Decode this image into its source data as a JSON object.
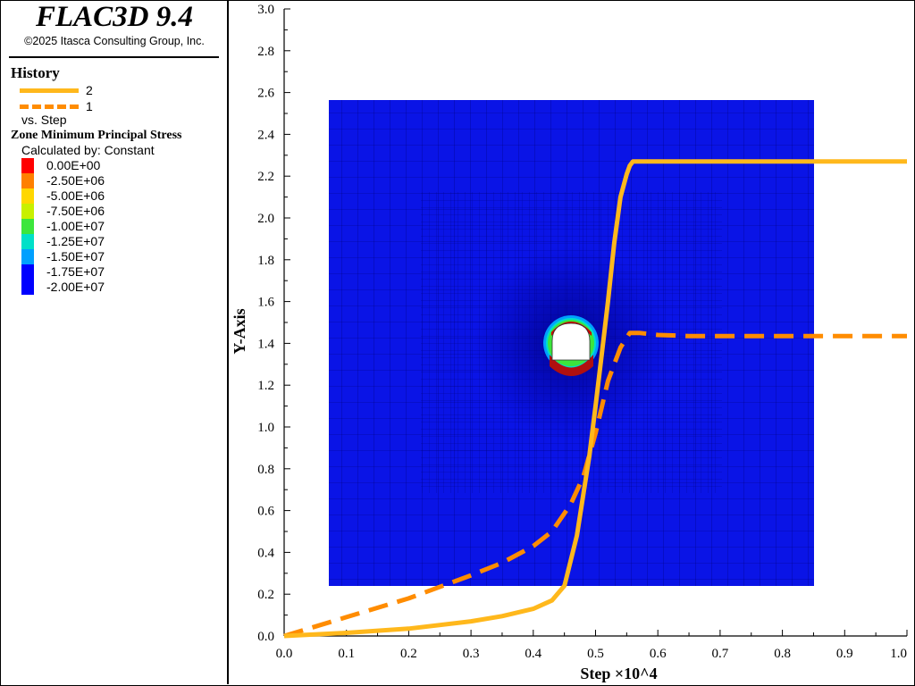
{
  "app": {
    "title": "FLAC3D 9.4",
    "copyright": "©2025 Itasca Consulting Group, Inc."
  },
  "legend": {
    "history_heading": "History",
    "histories": [
      {
        "label": "2",
        "color": "#FFB81C",
        "style": "solid"
      },
      {
        "label": "1",
        "color": "#FF8C00",
        "style": "dashed"
      }
    ],
    "vs_label": "vs. Step",
    "contour_title": "Zone Minimum Principal Stress",
    "calculated_by": "Calculated by: Constant",
    "contour_bands": [
      {
        "label": "0.00E+00",
        "color": "#FF0000"
      },
      {
        "label": "-2.50E+06",
        "color": "#FF8000"
      },
      {
        "label": "-5.00E+06",
        "color": "#FFD700"
      },
      {
        "label": "-7.50E+06",
        "color": "#C8F000"
      },
      {
        "label": "-1.00E+07",
        "color": "#3CE63C"
      },
      {
        "label": "-1.25E+07",
        "color": "#00E0C8"
      },
      {
        "label": "-1.50E+07",
        "color": "#00A0FF"
      },
      {
        "label": "-1.75E+07",
        "color": "#0000FF"
      },
      {
        "label": "-2.00E+07",
        "color": "#0000FF"
      }
    ]
  },
  "chart_data": {
    "type": "line",
    "xlabel": "Step ×10^4",
    "ylabel": "Y-Axis",
    "xlim": [
      0.0,
      1.0
    ],
    "ylim": [
      0.0,
      3.0
    ],
    "x_ticks": [
      "0.0",
      "0.1",
      "0.2",
      "0.3",
      "0.4",
      "0.5",
      "0.6",
      "0.7",
      "0.8",
      "0.9",
      "1.0"
    ],
    "y_ticks": [
      "0.0",
      "0.2",
      "0.4",
      "0.6",
      "0.8",
      "1.0",
      "1.2",
      "1.4",
      "1.6",
      "1.8",
      "2.0",
      "2.2",
      "2.4",
      "2.6",
      "2.8",
      "3.0"
    ],
    "series": [
      {
        "name": "2",
        "color": "#FFB81C",
        "style": "solid",
        "x": [
          0.0,
          0.1,
          0.2,
          0.3,
          0.35,
          0.4,
          0.43,
          0.45,
          0.47,
          0.49,
          0.5,
          0.51,
          0.52,
          0.53,
          0.54,
          0.55,
          0.555,
          0.56,
          0.6,
          0.7,
          0.8,
          0.9,
          1.0
        ],
        "y": [
          0.0,
          0.015,
          0.035,
          0.07,
          0.095,
          0.13,
          0.17,
          0.24,
          0.48,
          0.86,
          1.1,
          1.35,
          1.6,
          1.88,
          2.1,
          2.21,
          2.25,
          2.27,
          2.27,
          2.27,
          2.27,
          2.27,
          2.27
        ]
      },
      {
        "name": "1",
        "color": "#FF8C00",
        "style": "dashed",
        "x": [
          0.0,
          0.1,
          0.2,
          0.3,
          0.35,
          0.4,
          0.43,
          0.46,
          0.48,
          0.5,
          0.52,
          0.54,
          0.555,
          0.57,
          0.6,
          0.65,
          0.7,
          0.8,
          0.9,
          1.0
        ],
        "y": [
          0.0,
          0.09,
          0.18,
          0.29,
          0.35,
          0.43,
          0.5,
          0.63,
          0.76,
          0.97,
          1.22,
          1.38,
          1.45,
          1.45,
          1.44,
          1.435,
          1.435,
          1.435,
          1.435,
          1.435
        ]
      }
    ]
  }
}
